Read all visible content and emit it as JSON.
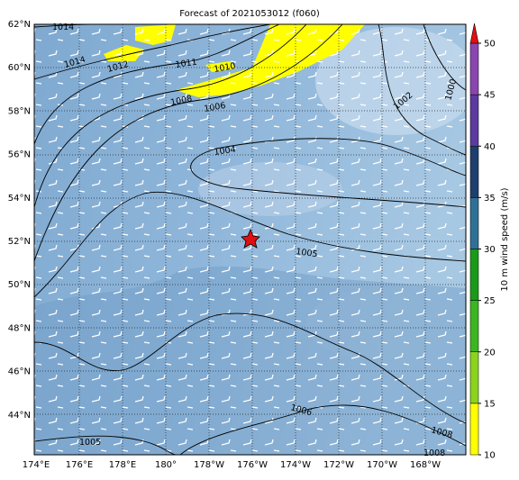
{
  "map": {
    "title": "Forecast of 2021053012 (f060)",
    "lat_labels": [
      "62°N",
      "60°N",
      "58°N",
      "56°N",
      "54°N",
      "52°N",
      "50°N",
      "48°N",
      "46°N",
      "44°N"
    ],
    "lon_labels": [
      "174°E",
      "176°E",
      "178°E",
      "180°",
      "178°W",
      "176°W",
      "174°W",
      "172°W",
      "170°W",
      "168°W"
    ],
    "contour_labels": [
      "1014",
      "1014",
      "1012",
      "1011",
      "1010",
      "1008",
      "1006",
      "1004",
      "1005",
      "1002",
      "1000",
      "1006",
      "1008",
      "1005",
      "1008"
    ],
    "colorbar": {
      "label": "10 m wind speed (m/s)",
      "lim": [
        10,
        50
      ],
      "ticks": [
        10,
        15,
        20,
        25,
        30,
        35,
        40,
        45,
        50
      ],
      "colors": [
        "#ffff00",
        "#8ad41c",
        "#3cb521",
        "#1a9a1a",
        "#2f7196",
        "#1e3f6e",
        "#5c3a9e",
        "#8a45b0"
      ],
      "extend_color": "#e01010"
    }
  }
}
